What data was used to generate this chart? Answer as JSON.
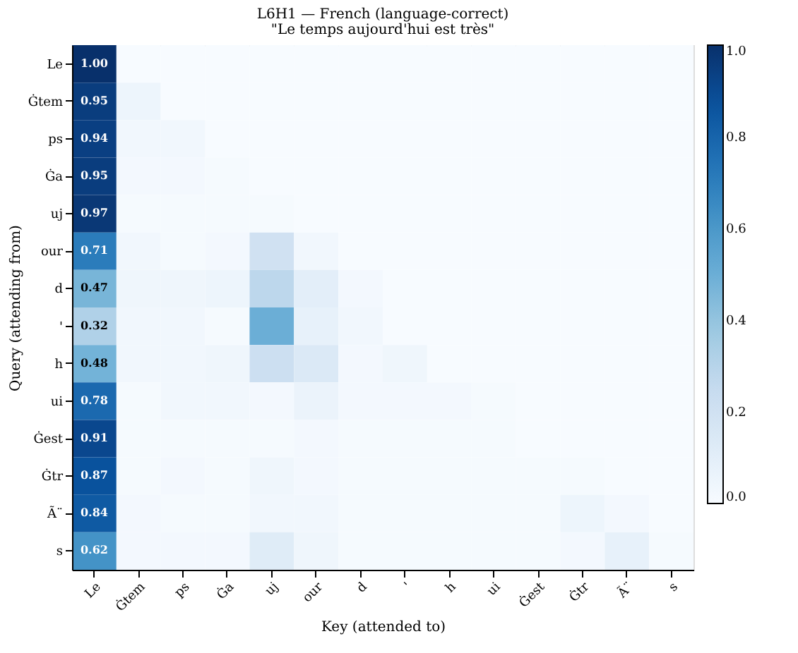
{
  "chart_data": {
    "type": "heatmap",
    "title": "L6H1 — French (language-correct)",
    "subtitle": "\"Le temps aujourd'hui est très\"",
    "xlabel": "Key (attended to)",
    "ylabel": "Query (attending from)",
    "categories": [
      "Le",
      "Ġtem",
      "ps",
      "Ġa",
      "uj",
      "our",
      "d",
      "'",
      "h",
      "ui",
      "Ġest",
      "Ġtr",
      "Ã¨",
      "s"
    ],
    "y_categories": [
      "Le",
      "Ġtem",
      "ps",
      "Ġa",
      "uj",
      "our",
      "d",
      "'",
      "h",
      "ui",
      "Ġest",
      "Ġtr",
      "Ã¨",
      "s"
    ],
    "cells": [
      [
        1.0,
        0,
        0,
        0,
        0,
        0,
        0,
        0,
        0,
        0,
        0,
        0,
        0,
        0
      ],
      [
        0.95,
        0.05,
        0,
        0,
        0,
        0,
        0,
        0,
        0,
        0,
        0,
        0,
        0,
        0
      ],
      [
        0.94,
        0.03,
        0.03,
        0,
        0,
        0,
        0,
        0,
        0,
        0,
        0,
        0,
        0,
        0
      ],
      [
        0.95,
        0.02,
        0.02,
        0.01,
        0,
        0,
        0,
        0,
        0,
        0,
        0,
        0,
        0,
        0
      ],
      [
        0.97,
        0.01,
        0.01,
        0.01,
        0.01,
        0,
        0,
        0,
        0,
        0,
        0,
        0,
        0,
        0
      ],
      [
        0.71,
        0.03,
        0.01,
        0.02,
        0.2,
        0.03,
        0,
        0,
        0,
        0,
        0,
        0,
        0,
        0
      ],
      [
        0.47,
        0.04,
        0.04,
        0.05,
        0.28,
        0.1,
        0.02,
        0,
        0,
        0,
        0,
        0,
        0,
        0
      ],
      [
        0.32,
        0.03,
        0.03,
        0.01,
        0.5,
        0.08,
        0.03,
        0,
        0,
        0,
        0,
        0,
        0,
        0
      ],
      [
        0.48,
        0.03,
        0.03,
        0.04,
        0.22,
        0.14,
        0.02,
        0.04,
        0,
        0,
        0,
        0,
        0,
        0
      ],
      [
        0.78,
        0.01,
        0.03,
        0.03,
        0.02,
        0.06,
        0.02,
        0.02,
        0.02,
        0.01,
        0,
        0,
        0,
        0
      ],
      [
        0.91,
        0.01,
        0.01,
        0.01,
        0.01,
        0.02,
        0.01,
        0.01,
        0.01,
        0.01,
        0,
        0,
        0,
        0
      ],
      [
        0.87,
        0.01,
        0.02,
        0.01,
        0.04,
        0.02,
        0.01,
        0.01,
        0.01,
        0.01,
        0.01,
        0.01,
        0,
        0
      ],
      [
        0.84,
        0.02,
        0.01,
        0.01,
        0.03,
        0.03,
        0.01,
        0.01,
        0.01,
        0.01,
        0.01,
        0.05,
        0.02,
        0
      ],
      [
        0.62,
        0.02,
        0.02,
        0.02,
        0.12,
        0.04,
        0.01,
        0.01,
        0.01,
        0.01,
        0.01,
        0.02,
        0.08,
        0.01
      ]
    ],
    "cell_labels": [
      [
        "1.00",
        null,
        null,
        null,
        null,
        null,
        null,
        null,
        null,
        null,
        null,
        null,
        null,
        null
      ],
      [
        "0.95",
        null,
        null,
        null,
        null,
        null,
        null,
        null,
        null,
        null,
        null,
        null,
        null,
        null
      ],
      [
        "0.94",
        null,
        null,
        null,
        null,
        null,
        null,
        null,
        null,
        null,
        null,
        null,
        null,
        null
      ],
      [
        "0.95",
        null,
        null,
        null,
        null,
        null,
        null,
        null,
        null,
        null,
        null,
        null,
        null,
        null
      ],
      [
        "0.97",
        null,
        null,
        null,
        null,
        null,
        null,
        null,
        null,
        null,
        null,
        null,
        null,
        null
      ],
      [
        "0.71",
        null,
        null,
        null,
        null,
        null,
        null,
        null,
        null,
        null,
        null,
        null,
        null,
        null
      ],
      [
        "0.47",
        null,
        null,
        null,
        null,
        null,
        null,
        null,
        null,
        null,
        null,
        null,
        null,
        null
      ],
      [
        "0.32",
        null,
        null,
        null,
        null,
        null,
        null,
        null,
        null,
        null,
        null,
        null,
        null,
        null
      ],
      [
        "0.48",
        null,
        null,
        null,
        null,
        null,
        null,
        null,
        null,
        null,
        null,
        null,
        null,
        null
      ],
      [
        "0.78",
        null,
        null,
        null,
        null,
        null,
        null,
        null,
        null,
        null,
        null,
        null,
        null,
        null
      ],
      [
        "0.91",
        null,
        null,
        null,
        null,
        null,
        null,
        null,
        null,
        null,
        null,
        null,
        null,
        null
      ],
      [
        "0.87",
        null,
        null,
        null,
        null,
        null,
        null,
        null,
        null,
        null,
        null,
        null,
        null,
        null
      ],
      [
        "0.84",
        null,
        null,
        null,
        null,
        null,
        null,
        null,
        null,
        null,
        null,
        null,
        null,
        null
      ],
      [
        "0.62",
        null,
        null,
        null,
        null,
        null,
        null,
        null,
        null,
        null,
        null,
        null,
        null,
        null
      ]
    ],
    "clim": [
      0,
      1
    ],
    "cticks": [
      {
        "value": 0,
        "label": "0.0"
      },
      {
        "value": 0.2,
        "label": "0.2"
      },
      {
        "value": 0.4,
        "label": "0.4"
      },
      {
        "value": 0.6,
        "label": "0.6"
      },
      {
        "value": 0.8,
        "label": "0.8"
      },
      {
        "value": 1,
        "label": "1.0"
      }
    ]
  }
}
